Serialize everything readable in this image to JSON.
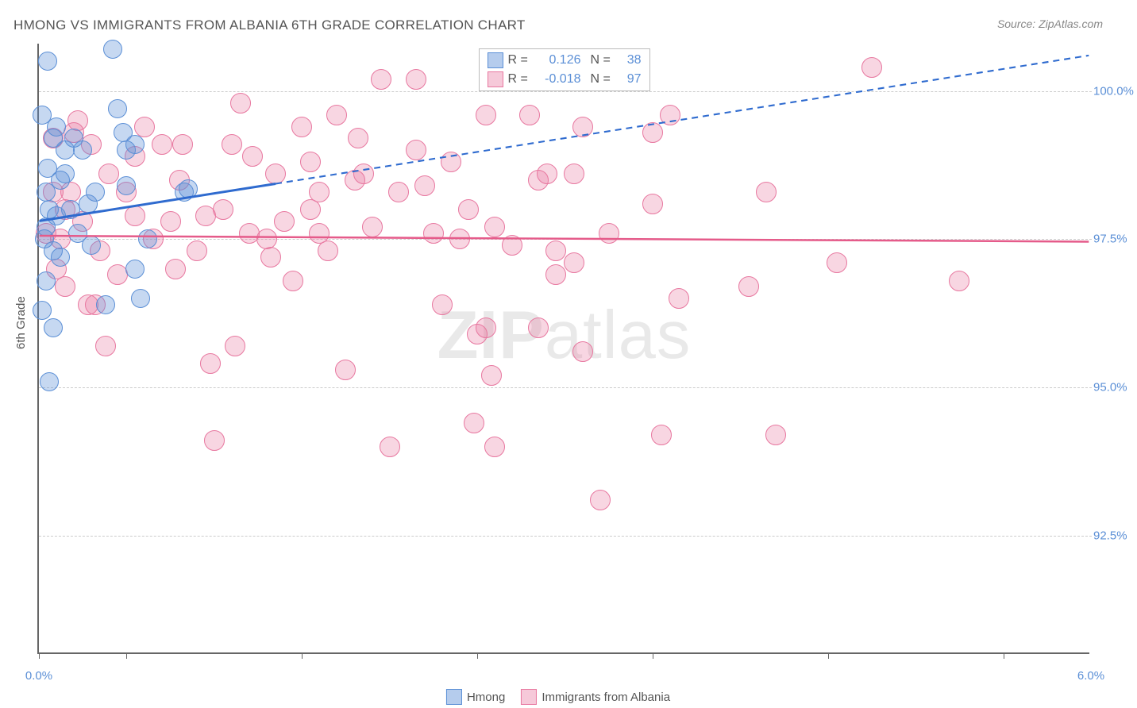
{
  "title": "HMONG VS IMMIGRANTS FROM ALBANIA 6TH GRADE CORRELATION CHART",
  "source": "Source: ZipAtlas.com",
  "y_axis_label": "6th Grade",
  "watermark_a": "ZIP",
  "watermark_b": "atlas",
  "xlim": [
    0.0,
    6.0
  ],
  "ylim": [
    90.5,
    100.8
  ],
  "x_ticks": [
    0.0,
    0.5,
    1.5,
    2.5,
    3.5,
    4.5,
    5.5
  ],
  "x_tick_labels": {
    "0": "0.0%",
    "6": "6.0%"
  },
  "y_ticks": [
    92.5,
    95.0,
    97.5,
    100.0
  ],
  "y_tick_labels": {
    "92.5": "92.5%",
    "95": "95.0%",
    "97.5": "97.5%",
    "100": "100.0%"
  },
  "series": {
    "hmong": {
      "label": "Hmong",
      "color_fill": "rgba(91,143,214,0.35)",
      "color_stroke": "#5b8fd6",
      "r_value": "0.126",
      "n_value": "38",
      "dot_radius": 12,
      "trend": {
        "x1": 0.0,
        "y1": 97.8,
        "x2": 6.0,
        "y2": 100.6,
        "solid_until_x": 1.35,
        "color": "#2f6bcf",
        "width": 3
      },
      "points": [
        [
          0.02,
          99.6
        ],
        [
          0.05,
          100.5
        ],
        [
          0.08,
          99.2
        ],
        [
          0.05,
          98.7
        ],
        [
          0.15,
          99.0
        ],
        [
          0.04,
          98.3
        ],
        [
          0.1,
          97.9
        ],
        [
          0.03,
          97.5
        ],
        [
          0.08,
          97.3
        ],
        [
          0.12,
          97.2
        ],
        [
          0.04,
          96.8
        ],
        [
          0.06,
          95.1
        ],
        [
          0.02,
          96.3
        ],
        [
          0.15,
          98.6
        ],
        [
          0.18,
          98.0
        ],
        [
          0.2,
          99.2
        ],
        [
          0.25,
          99.0
        ],
        [
          0.28,
          98.1
        ],
        [
          0.3,
          97.4
        ],
        [
          0.32,
          98.3
        ],
        [
          0.42,
          100.7
        ],
        [
          0.45,
          99.7
        ],
        [
          0.48,
          99.3
        ],
        [
          0.5,
          99.0
        ],
        [
          0.5,
          98.4
        ],
        [
          0.55,
          97.0
        ],
        [
          0.55,
          99.1
        ],
        [
          0.58,
          96.5
        ],
        [
          0.62,
          97.5
        ],
        [
          0.83,
          98.3
        ],
        [
          0.85,
          98.35
        ],
        [
          0.38,
          96.4
        ],
        [
          0.08,
          96.0
        ],
        [
          0.04,
          97.7
        ],
        [
          0.12,
          98.5
        ],
        [
          0.1,
          99.4
        ],
        [
          0.06,
          98.0
        ],
        [
          0.22,
          97.6
        ]
      ]
    },
    "albania": {
      "label": "Immigrants from Albania",
      "color_fill": "rgba(232,120,160,0.30)",
      "color_stroke": "#e878a0",
      "r_value": "-0.018",
      "n_value": "97",
      "dot_radius": 13,
      "trend": {
        "x1": 0.0,
        "y1": 97.55,
        "x2": 6.0,
        "y2": 97.45,
        "solid_until_x": 6.0,
        "color": "#e55b8a",
        "width": 2.5
      },
      "points": [
        [
          0.08,
          99.2
        ],
        [
          0.12,
          97.5
        ],
        [
          0.15,
          98.0
        ],
        [
          0.2,
          99.3
        ],
        [
          0.22,
          99.5
        ],
        [
          0.25,
          97.8
        ],
        [
          0.28,
          96.4
        ],
        [
          0.3,
          99.1
        ],
        [
          0.35,
          97.3
        ],
        [
          0.38,
          95.7
        ],
        [
          0.4,
          98.6
        ],
        [
          0.45,
          96.9
        ],
        [
          0.5,
          98.3
        ],
        [
          0.55,
          98.9
        ],
        [
          0.6,
          99.4
        ],
        [
          0.65,
          97.5
        ],
        [
          0.7,
          99.1
        ],
        [
          0.75,
          97.8
        ],
        [
          0.78,
          97.0
        ],
        [
          0.8,
          98.5
        ],
        [
          0.82,
          99.1
        ],
        [
          0.9,
          97.3
        ],
        [
          0.95,
          97.9
        ],
        [
          0.98,
          95.4
        ],
        [
          1.0,
          94.1
        ],
        [
          1.05,
          98.0
        ],
        [
          1.1,
          99.1
        ],
        [
          1.12,
          95.7
        ],
        [
          1.15,
          99.8
        ],
        [
          1.2,
          97.6
        ],
        [
          1.22,
          98.9
        ],
        [
          1.3,
          97.5
        ],
        [
          1.32,
          97.2
        ],
        [
          1.35,
          98.6
        ],
        [
          1.4,
          97.8
        ],
        [
          1.45,
          96.8
        ],
        [
          1.5,
          99.4
        ],
        [
          1.55,
          98.8
        ],
        [
          1.55,
          98.0
        ],
        [
          1.6,
          98.3
        ],
        [
          1.6,
          97.6
        ],
        [
          1.65,
          97.3
        ],
        [
          1.7,
          99.6
        ],
        [
          1.75,
          95.3
        ],
        [
          1.8,
          98.5
        ],
        [
          1.82,
          99.2
        ],
        [
          1.85,
          98.6
        ],
        [
          1.9,
          97.7
        ],
        [
          1.95,
          100.2
        ],
        [
          2.0,
          94.0
        ],
        [
          2.05,
          98.3
        ],
        [
          2.15,
          100.2
        ],
        [
          2.15,
          99.0
        ],
        [
          2.2,
          98.4
        ],
        [
          2.25,
          97.6
        ],
        [
          2.3,
          96.4
        ],
        [
          2.35,
          98.8
        ],
        [
          2.4,
          97.5
        ],
        [
          2.45,
          98.0
        ],
        [
          2.48,
          94.4
        ],
        [
          2.5,
          95.9
        ],
        [
          2.55,
          96.0
        ],
        [
          2.55,
          99.6
        ],
        [
          2.58,
          95.2
        ],
        [
          2.6,
          97.7
        ],
        [
          2.6,
          94.0
        ],
        [
          2.7,
          97.4
        ],
        [
          2.8,
          99.6
        ],
        [
          2.85,
          96.0
        ],
        [
          2.85,
          98.5
        ],
        [
          2.9,
          98.6
        ],
        [
          2.95,
          96.9
        ],
        [
          2.95,
          97.3
        ],
        [
          3.05,
          98.6
        ],
        [
          3.05,
          97.1
        ],
        [
          3.1,
          99.4
        ],
        [
          3.1,
          95.6
        ],
        [
          3.2,
          93.1
        ],
        [
          3.25,
          97.6
        ],
        [
          3.5,
          98.1
        ],
        [
          3.5,
          99.3
        ],
        [
          3.55,
          94.2
        ],
        [
          3.6,
          99.6
        ],
        [
          3.65,
          96.5
        ],
        [
          4.05,
          96.7
        ],
        [
          4.15,
          98.3
        ],
        [
          4.2,
          94.2
        ],
        [
          4.55,
          97.1
        ],
        [
          4.75,
          100.4
        ],
        [
          5.25,
          96.8
        ],
        [
          0.15,
          96.7
        ],
        [
          0.08,
          98.3
        ],
        [
          0.55,
          97.9
        ],
        [
          0.32,
          96.4
        ],
        [
          0.1,
          97.0
        ],
        [
          0.04,
          97.6
        ],
        [
          0.18,
          98.3
        ]
      ]
    }
  },
  "stats_labels": {
    "r": "R =",
    "n": "N ="
  },
  "colors": {
    "blue_fill": "rgba(91,143,214,0.45)",
    "blue_border": "#5b8fd6",
    "pink_fill": "rgba(232,120,160,0.40)",
    "pink_border": "#e878a0"
  }
}
